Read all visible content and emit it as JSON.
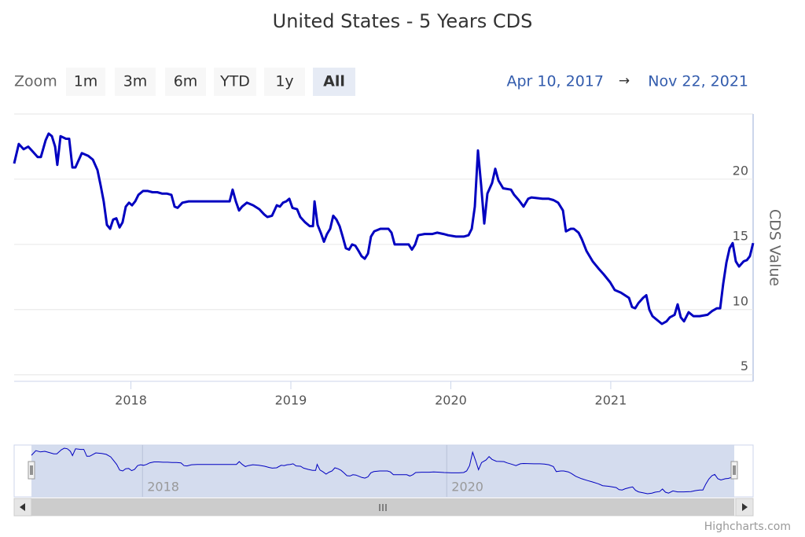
{
  "chart_data": {
    "type": "line",
    "title": "United States - 5 Years CDS",
    "y_axis_label": "CDS Value",
    "range_selector": {
      "zoom_label": "Zoom",
      "buttons": [
        "1m",
        "3m",
        "6m",
        "YTD",
        "1y",
        "All"
      ],
      "selected": 5,
      "from": "Apr 10, 2017",
      "arrow": "→",
      "to": "Nov 22, 2021"
    },
    "credit": "Highcharts.com",
    "xlim": [
      2017.27,
      2021.89
    ],
    "xticks": [
      2018,
      2019,
      2020,
      2021
    ],
    "ylim": [
      4.5,
      25
    ],
    "yticks": [
      5,
      10,
      15,
      20
    ],
    "grid": true,
    "navigator": {
      "xticks": [
        2018,
        2020
      ]
    },
    "x": [
      2017.27,
      2017.299,
      2017.329,
      2017.358,
      2017.388,
      2017.417,
      2017.437,
      2017.467,
      2017.486,
      2017.506,
      2017.526,
      2017.54,
      2017.56,
      2017.594,
      2017.614,
      2017.634,
      2017.653,
      2017.693,
      2017.732,
      2017.762,
      2017.791,
      2017.811,
      2017.83,
      2017.85,
      2017.87,
      2017.889,
      2017.909,
      2017.929,
      2017.948,
      2017.968,
      2017.988,
      2018.007,
      2018.027,
      2018.047,
      2018.076,
      2018.106,
      2018.135,
      2018.165,
      2018.194,
      2018.224,
      2018.253,
      2018.273,
      2018.292,
      2018.322,
      2018.361,
      2018.41,
      2018.617,
      2018.636,
      2018.656,
      2018.676,
      2018.695,
      2018.725,
      2018.764,
      2018.803,
      2018.833,
      2018.853,
      2018.882,
      2018.912,
      2018.931,
      2018.951,
      2018.971,
      2018.99,
      2019.01,
      2019.039,
      2019.059,
      2019.089,
      2019.118,
      2019.138,
      2019.148,
      2019.167,
      2019.187,
      2019.207,
      2019.226,
      2019.246,
      2019.265,
      2019.285,
      2019.305,
      2019.324,
      2019.344,
      2019.364,
      2019.383,
      2019.403,
      2019.423,
      2019.442,
      2019.462,
      2019.482,
      2019.501,
      2019.521,
      2019.56,
      2019.61,
      2019.629,
      2019.649,
      2019.698,
      2019.737,
      2019.757,
      2019.777,
      2019.796,
      2019.836,
      2019.885,
      2019.914,
      2019.954,
      2019.983,
      2020.032,
      2020.081,
      2020.111,
      2020.131,
      2020.15,
      2020.17,
      2020.19,
      2020.209,
      2020.229,
      2020.258,
      2020.278,
      2020.298,
      2020.327,
      2020.376,
      2020.396,
      2020.425,
      2020.455,
      2020.484,
      2020.504,
      2020.573,
      2020.612,
      2020.642,
      2020.671,
      2020.701,
      2020.72,
      2020.75,
      2020.769,
      2020.799,
      2020.819,
      2020.848,
      2020.887,
      2020.927,
      2020.956,
      2020.996,
      2021.025,
      2021.064,
      2021.114,
      2021.133,
      2021.153,
      2021.173,
      2021.202,
      2021.222,
      2021.241,
      2021.261,
      2021.29,
      2021.32,
      2021.349,
      2021.369,
      2021.399,
      2021.418,
      2021.438,
      2021.458,
      2021.487,
      2021.517,
      2021.556,
      2021.605,
      2021.635,
      2021.664,
      2021.684,
      2021.703,
      2021.723,
      2021.743,
      2021.762,
      2021.782,
      2021.802,
      2021.831,
      2021.851,
      2021.87,
      2021.89
    ],
    "series": [
      {
        "color": "#0000c0",
        "values": [
          21.2,
          22.7,
          22.3,
          22.5,
          22.1,
          21.7,
          21.7,
          23.0,
          23.5,
          23.3,
          22.5,
          21.1,
          23.3,
          23.1,
          23.1,
          20.9,
          20.9,
          22.0,
          21.8,
          21.5,
          20.7,
          19.5,
          18.3,
          16.5,
          16.2,
          16.9,
          17.0,
          16.3,
          16.7,
          17.9,
          18.2,
          18.0,
          18.3,
          18.8,
          19.1,
          19.1,
          19.0,
          19.0,
          18.9,
          18.9,
          18.8,
          17.9,
          17.8,
          18.2,
          18.3,
          18.3,
          18.3,
          19.2,
          18.3,
          17.6,
          17.9,
          18.2,
          18.0,
          17.7,
          17.3,
          17.1,
          17.2,
          18.0,
          17.9,
          18.2,
          18.3,
          18.5,
          17.8,
          17.7,
          17.1,
          16.7,
          16.4,
          16.4,
          18.3,
          16.5,
          15.9,
          15.2,
          15.8,
          16.2,
          17.2,
          16.9,
          16.4,
          15.6,
          14.7,
          14.6,
          15.0,
          14.9,
          14.5,
          14.1,
          13.9,
          14.3,
          15.6,
          16.0,
          16.2,
          16.2,
          15.9,
          15.0,
          15.0,
          15.0,
          14.6,
          15.0,
          15.7,
          15.8,
          15.8,
          15.9,
          15.8,
          15.7,
          15.6,
          15.6,
          15.7,
          16.2,
          17.9,
          22.2,
          19.5,
          16.6,
          18.9,
          19.7,
          20.8,
          19.9,
          19.3,
          19.2,
          18.8,
          18.4,
          17.9,
          18.5,
          18.6,
          18.5,
          18.5,
          18.4,
          18.2,
          17.6,
          16.0,
          16.2,
          16.2,
          15.9,
          15.4,
          14.5,
          13.7,
          13.1,
          12.7,
          12.1,
          11.5,
          11.3,
          10.9,
          10.2,
          10.1,
          10.5,
          10.9,
          11.1,
          10.0,
          9.5,
          9.2,
          8.9,
          9.1,
          9.4,
          9.6,
          10.4,
          9.4,
          9.1,
          9.8,
          9.5,
          9.5,
          9.6,
          9.9,
          10.1,
          10.1,
          12.0,
          13.6,
          14.7,
          15.1,
          13.7,
          13.3,
          13.7,
          13.8,
          14.1,
          15.1
        ]
      }
    ]
  }
}
